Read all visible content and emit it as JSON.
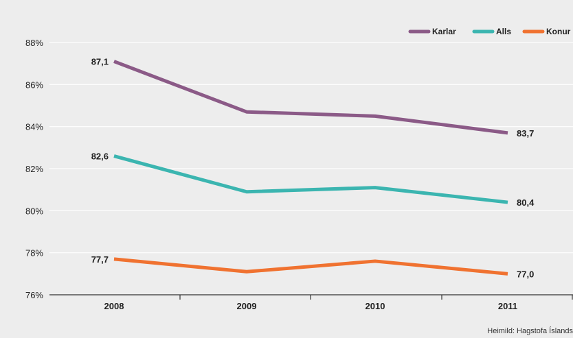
{
  "chart_data": {
    "type": "line",
    "title": "",
    "xlabel": "",
    "ylabel": "",
    "categories": [
      "2008",
      "2009",
      "2010",
      "2011"
    ],
    "ylim": [
      76,
      88
    ],
    "y_ticks": [
      "76%",
      "78%",
      "80%",
      "82%",
      "84%",
      "86%",
      "88%"
    ],
    "grid": true,
    "legend_position": "top-right",
    "series": [
      {
        "name": "Karlar",
        "color": "#8b5a87",
        "values": [
          87.1,
          84.7,
          84.5,
          83.7
        ],
        "labels": {
          "first": "87,1",
          "last": "83,7"
        }
      },
      {
        "name": "Alls",
        "color": "#3bb5b0",
        "values": [
          82.6,
          80.9,
          81.1,
          80.4
        ],
        "labels": {
          "first": "82,6",
          "last": "80,4"
        }
      },
      {
        "name": "Konur",
        "color": "#f07230",
        "values": [
          77.7,
          77.1,
          77.6,
          77.0
        ],
        "labels": {
          "first": "77,7",
          "last": "77,0"
        }
      }
    ],
    "source": "Heimild: Hagstofa Íslands"
  }
}
